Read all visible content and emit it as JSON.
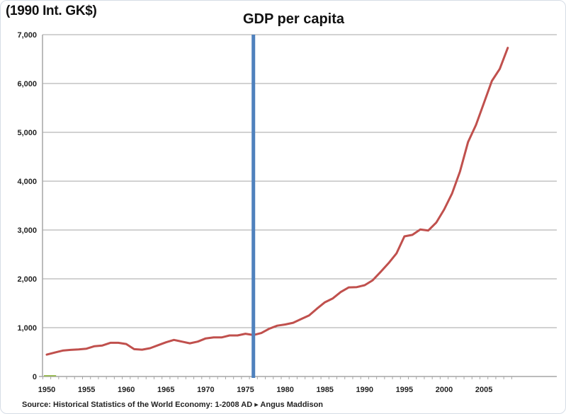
{
  "chart_data": {
    "type": "line",
    "title": "GDP per capita",
    "ylabel": "(1990 Int. GK$)",
    "xlabel": "",
    "source": "Source: Historical Statistics of the World Economy:  1-2008 AD ▸ Angus Maddison",
    "xlim": [
      1950,
      2008
    ],
    "ylim": [
      0,
      7000
    ],
    "grid": true,
    "legend": "none",
    "x_ticks": [
      "1950",
      "1955",
      "1960",
      "1965",
      "1970",
      "1975",
      "1980",
      "1985",
      "1990",
      "1995",
      "2000",
      "2005"
    ],
    "y_ticks": [
      "0",
      "1,000",
      "2,000",
      "3,000",
      "4,000",
      "5,000",
      "6,000",
      "7,000"
    ],
    "vertical_marker": {
      "x": 1976,
      "color": "#4f81bd"
    },
    "series": [
      {
        "name": "GDP per capita",
        "color": "#c0504d",
        "x": [
          1950,
          1951,
          1952,
          1953,
          1954,
          1955,
          1956,
          1957,
          1958,
          1959,
          1960,
          1961,
          1962,
          1963,
          1964,
          1965,
          1966,
          1967,
          1968,
          1969,
          1970,
          1971,
          1972,
          1973,
          1974,
          1975,
          1976,
          1977,
          1978,
          1979,
          1980,
          1981,
          1982,
          1983,
          1984,
          1985,
          1986,
          1987,
          1988,
          1989,
          1990,
          1991,
          1992,
          1993,
          1994,
          1995,
          1996,
          1997,
          1998,
          1999,
          2000,
          2001,
          2002,
          2003,
          2004,
          2005,
          2006,
          2007,
          2008
        ],
        "values": [
          448,
          490,
          530,
          545,
          555,
          570,
          620,
          635,
          690,
          690,
          665,
          560,
          550,
          580,
          640,
          700,
          750,
          715,
          680,
          715,
          780,
          800,
          800,
          840,
          840,
          875,
          850,
          890,
          980,
          1040,
          1065,
          1100,
          1175,
          1250,
          1390,
          1520,
          1600,
          1730,
          1825,
          1830,
          1870,
          1970,
          2140,
          2320,
          2520,
          2870,
          2900,
          3010,
          2990,
          3150,
          3420,
          3750,
          4200,
          4800,
          5150,
          5600,
          6050,
          6300,
          6730
        ]
      }
    ]
  }
}
